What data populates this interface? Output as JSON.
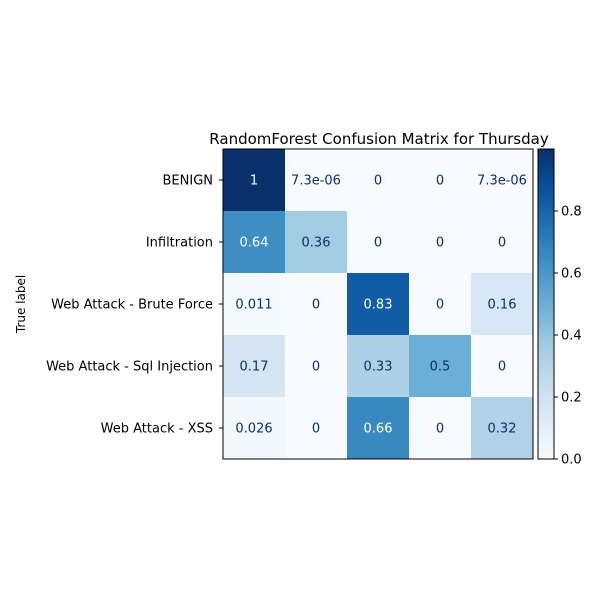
{
  "chart_data": {
    "type": "heatmap",
    "title": "RandomForest Confusion Matrix for Thursday",
    "ylabel": "True label",
    "xlabel": "",
    "rows": [
      "BENIGN",
      "Infiltration",
      "Web Attack - Brute Force",
      "Web Attack - Sql Injection",
      "Web Attack - XSS"
    ],
    "values": [
      [
        1,
        7.3e-06,
        0,
        0,
        7.3e-06
      ],
      [
        0.64,
        0.36,
        0,
        0,
        0
      ],
      [
        0.011,
        0,
        0.83,
        0,
        0.16
      ],
      [
        0.17,
        0,
        0.33,
        0.5,
        0
      ],
      [
        0.026,
        0,
        0.66,
        0,
        0.32
      ]
    ],
    "labels": [
      [
        "1",
        "7.3e-06",
        "0",
        "0",
        "7.3e-06"
      ],
      [
        "0.64",
        "0.36",
        "0",
        "0",
        "0"
      ],
      [
        "0.011",
        "0",
        "0.83",
        "0",
        "0.16"
      ],
      [
        "0.17",
        "0",
        "0.33",
        "0.5",
        "0"
      ],
      [
        "0.026",
        "0",
        "0.66",
        "0",
        "0.32"
      ]
    ],
    "colormap": "Blues",
    "colorbar": {
      "range": [
        0,
        1
      ],
      "ticks": [
        0.0,
        0.2,
        0.4,
        0.6,
        0.8
      ],
      "tick_labels": [
        "0.0",
        "0.2",
        "0.4",
        "0.6",
        "0.8"
      ]
    }
  }
}
